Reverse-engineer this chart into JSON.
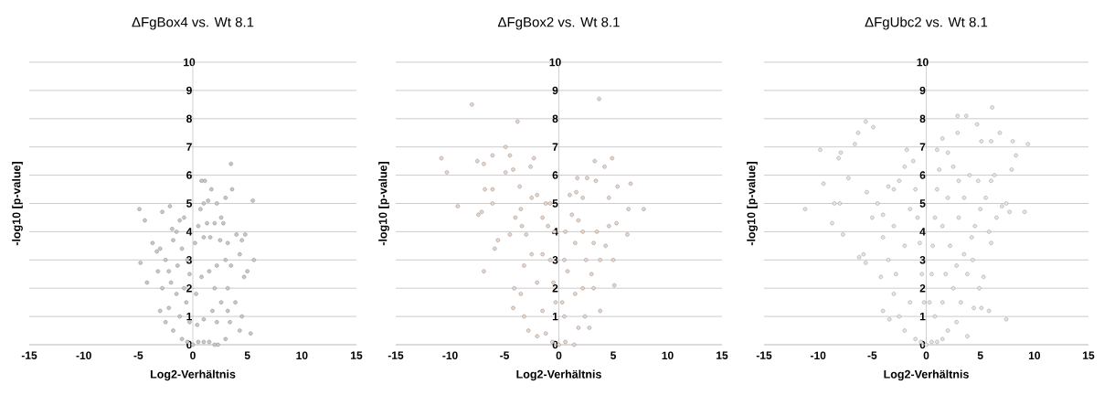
{
  "chart_data": [
    {
      "type": "scatter",
      "title": "ΔFgBox4 vs. Wt 8.1",
      "xlabel": "Log2-Verhältnis",
      "ylabel": "-log10 [p-value]",
      "xlim": [
        -15,
        15
      ],
      "ylim": [
        0,
        10
      ],
      "xticks": [
        -15,
        -10,
        -5,
        0,
        5,
        10,
        15
      ],
      "yticks": [
        0,
        1,
        2,
        3,
        4,
        5,
        6,
        7,
        8,
        9,
        10
      ],
      "grid": "y",
      "marker": "circle",
      "series": [
        {
          "color": "#c8c8cc",
          "x": [
            3.5,
            3.6,
            5.5,
            0.8,
            1.1,
            1.7,
            -4.9,
            -4.4,
            -4.8,
            -4.2,
            3.0,
            2.2,
            4.8,
            4.0,
            5.6,
            5.0,
            4.7,
            3.9,
            4.5,
            4.3,
            5.3,
            3.4,
            3.0,
            3.2,
            -2.8,
            -2.1,
            -3.0,
            -3.7,
            -3.3,
            -3.0,
            -2.5,
            -2.2,
            -2.0,
            -1.8,
            -1.5,
            -1.2,
            -0.8,
            -1.0,
            -0.5,
            -0.3,
            -1.5,
            -2.2,
            -2.5,
            -1.8,
            -1.0,
            -0.5,
            0.0,
            0.5,
            1.0,
            1.5,
            2.0,
            2.3,
            -1.2,
            -0.6,
            0.3,
            0.2,
            0.5,
            0.7,
            1.0,
            1.3,
            1.0,
            1.6,
            2.0,
            2.6,
            2.8,
            2.5,
            3.2,
            3.0,
            2.2,
            1.5,
            0.8,
            2.0,
            2.6,
            1.8,
            1.0,
            0.4,
            2.2,
            -0.3,
            -0.8,
            -1.4,
            -2.8,
            -3.2,
            -1.9,
            1.4,
            3.2,
            3.5,
            4.3,
            4.5
          ],
          "values": [
            6.4,
            5.5,
            5.1,
            5.8,
            5.8,
            5.5,
            4.8,
            4.4,
            2.9,
            2.2,
            5.2,
            5.0,
            3.9,
            3.9,
            3.0,
            2.6,
            2.4,
            1.5,
            1.0,
            0.5,
            0.4,
            0.8,
            0.2,
            1.2,
            4.7,
            4.9,
            1.2,
            3.6,
            3.3,
            3.4,
            3.0,
            2.6,
            2.2,
            3.7,
            4.0,
            4.4,
            4.5,
            3.4,
            3.0,
            2.5,
            1.8,
            1.3,
            0.8,
            0.5,
            0.2,
            0.1,
            0.0,
            0.1,
            0.1,
            0.1,
            0.0,
            0.0,
            1.0,
            1.5,
            1.8,
            3.6,
            4.2,
            4.8,
            5.0,
            4.3,
            3.8,
            3.8,
            4.3,
            4.5,
            4.3,
            3.7,
            3.6,
            3.0,
            2.8,
            2.6,
            2.4,
            2.0,
            1.5,
            1.2,
            0.9,
            0.7,
            0.8,
            0.8,
            2.0,
            2.8,
            2.0,
            2.6,
            4.1,
            5.1,
            2.0,
            2.8,
            3.2,
            3.7
          ]
        }
      ]
    },
    {
      "type": "scatter",
      "title": "ΔFgBox2 vs. Wt 8.1",
      "xlabel": "Log2-Verhältnis",
      "ylabel": "-log10 [p-value]",
      "xlim": [
        -15,
        15
      ],
      "ylim": [
        0,
        10
      ],
      "xticks": [
        -15,
        -10,
        -5,
        0,
        5,
        10,
        15
      ],
      "yticks": [
        0,
        1,
        2,
        3,
        4,
        5,
        6,
        7,
        8,
        9,
        10
      ],
      "grid": "y",
      "marker": "circle",
      "series": [
        {
          "color": "#e6d5ca",
          "x": [
            -8.0,
            3.7,
            -3.8,
            -4.9,
            -10.8,
            -10.3,
            -7.5,
            -6.9,
            -6.1,
            -9.3,
            -6.8,
            -6.1,
            -7.4,
            -7.1,
            -6.1,
            -6.9,
            -5.9,
            -5.6,
            -4.9,
            -4.5,
            -2.3,
            -2.6,
            -4.2,
            -3.6,
            3.3,
            4.9,
            4.2,
            6.6,
            5.4,
            6.4,
            7.8,
            6.3,
            5.1,
            5.0,
            4.6,
            5.3,
            3.4,
            1.7,
            2.6,
            -4.2,
            -4.1,
            -3.4,
            -3.0,
            -2.5,
            -2.0,
            -1.2,
            -1.5,
            -1.0,
            -0.8,
            -0.5,
            -0.3,
            -2.5,
            -3.2,
            -3.5,
            -3.2,
            -2.8,
            -2.0,
            -1.5,
            -2.0,
            -1.2,
            -0.6,
            0.0,
            0.6,
            1.4,
            0.5,
            0.3,
            0.8,
            0.5,
            0.6,
            1.2,
            1.8,
            2.2,
            1.5,
            2.5,
            3.0,
            2.2,
            1.5,
            2.4,
            2.8,
            1.8,
            3.2,
            3.8,
            3.2,
            3.8,
            3.5,
            4.3,
            1.0,
            1.6,
            2.2,
            4.6,
            -4.5,
            -4.0,
            -3.5,
            -1.5,
            -0.4,
            -0.8
          ],
          "values": [
            8.5,
            8.7,
            7.9,
            7.0,
            6.6,
            6.1,
            6.5,
            6.4,
            6.7,
            4.9,
            5.5,
            5.5,
            4.6,
            4.7,
            5.0,
            2.6,
            3.4,
            3.7,
            6.1,
            6.7,
            6.6,
            6.3,
            6.2,
            5.6,
            6.5,
            6.6,
            6.3,
            5.7,
            5.6,
            4.8,
            4.8,
            3.9,
            2.1,
            3.0,
            4.2,
            4.3,
            5.8,
            5.9,
            5.9,
            1.3,
            2.0,
            4.2,
            3.9,
            5.2,
            5.3,
            5.0,
            4.5,
            4.2,
            3.0,
            2.2,
            1.5,
            3.2,
            2.8,
            1.8,
            1.0,
            0.5,
            0.3,
            1.2,
            2.2,
            0.4,
            0.1,
            0.0,
            0.1,
            0.0,
            1.0,
            1.5,
            2.6,
            3.0,
            4.0,
            4.6,
            4.4,
            4.0,
            3.6,
            3.0,
            2.5,
            2.0,
            1.8,
            1.0,
            0.6,
            0.6,
            2.0,
            1.2,
            3.6,
            3.0,
            4.0,
            3.5,
            5.3,
            5.4,
            5.2,
            5.2,
            3.9,
            4.5,
            4.8,
            3.2,
            4.0,
            5.0
          ]
        }
      ]
    },
    {
      "type": "scatter",
      "title": "ΔFgUbc2 vs. Wt 8.1",
      "xlabel": "Log2-Verhältnis",
      "ylabel": "-log10 [p-value]",
      "xlim": [
        -15,
        15
      ],
      "ylim": [
        0,
        10
      ],
      "xticks": [
        -15,
        -10,
        -5,
        0,
        5,
        10,
        15
      ],
      "yticks": [
        0,
        1,
        2,
        3,
        4,
        5,
        6,
        7,
        8,
        9,
        10
      ],
      "grid": "y",
      "marker": "circle",
      "series": [
        {
          "color": "#e4e4e4",
          "x": [
            6.1,
            2.9,
            3.7,
            -5.6,
            -4.9,
            -6.3,
            -6.6,
            -9.8,
            -11.2,
            -9.5,
            -7.9,
            -8.1,
            -8.5,
            -8.0,
            -8.7,
            -7.7,
            -7.2,
            -6.2,
            -5.8,
            -5.6,
            -4.2,
            -4.0,
            -3.4,
            4.7,
            6.8,
            8.0,
            9.4,
            8.3,
            9.1,
            7.9,
            7.4,
            7.7,
            7.4,
            3.8,
            4.4,
            5.1,
            5.8,
            4.9,
            5.3,
            6.0,
            2.9,
            1.5,
            5.1,
            6.0,
            -5.5,
            -4.5,
            -5.0,
            -4.0,
            -3.5,
            -3.0,
            -2.5,
            -2.0,
            -1.8,
            -1.2,
            -1.0,
            -0.8,
            -0.6,
            -0.4,
            -0.2,
            -1.5,
            -2.0,
            -3.0,
            -3.5,
            -4.0,
            -2.8,
            -3.0,
            -2.5,
            -2.0,
            -1.5,
            -1.0,
            -0.5,
            0.0,
            0.5,
            1.0,
            1.5,
            2.0,
            2.8,
            3.2,
            2.5,
            1.5,
            0.8,
            0.3,
            0.5,
            0.6,
            0.8,
            1.0,
            1.2,
            1.0,
            2.0,
            2.5,
            3.0,
            2.0,
            1.5,
            2.2,
            3.0,
            3.5,
            4.2,
            4.5,
            5.0,
            5.5,
            6.0,
            4.8,
            4.0,
            3.5,
            3.8,
            4.3,
            2.8,
            1.8,
            6.5,
            7.0,
            6.3,
            5.8
          ],
          "values": [
            8.4,
            8.1,
            8.1,
            7.9,
            7.7,
            7.5,
            7.1,
            6.9,
            4.8,
            5.7,
            6.8,
            6.6,
            5.0,
            5.0,
            4.3,
            3.9,
            5.9,
            3.1,
            3.2,
            2.9,
            2.4,
            1.2,
            0.9,
            7.8,
            7.5,
            7.2,
            7.1,
            6.7,
            4.7,
            6.2,
            5.0,
            4.7,
            0.9,
            0.3,
            1.3,
            1.3,
            1.2,
            2.0,
            2.4,
            3.6,
            7.5,
            7.3,
            7.2,
            7.2,
            5.4,
            5.0,
            4.5,
            4.6,
            5.6,
            5.5,
            5.8,
            6.3,
            6.9,
            6.5,
            5.5,
            4.5,
            3.6,
            2.5,
            1.5,
            4.8,
            3.5,
            4.2,
            3.0,
            3.8,
            2.5,
            1.8,
            1.0,
            0.5,
            1.5,
            0.2,
            0.1,
            0.0,
            0.1,
            0.1,
            0.2,
            0.5,
            0.8,
            1.5,
            2.0,
            1.5,
            1.0,
            1.5,
            2.5,
            3.5,
            4.5,
            5.5,
            6.2,
            6.9,
            6.8,
            6.3,
            5.8,
            5.2,
            4.2,
            3.5,
            4.5,
            3.2,
            3.8,
            4.2,
            4.8,
            5.2,
            5.8,
            5.8,
            6.0,
            5.2,
            2.5,
            3.0,
            2.8,
            2.5,
            4.5,
            4.9,
            6.0,
            4.0
          ]
        }
      ]
    }
  ]
}
